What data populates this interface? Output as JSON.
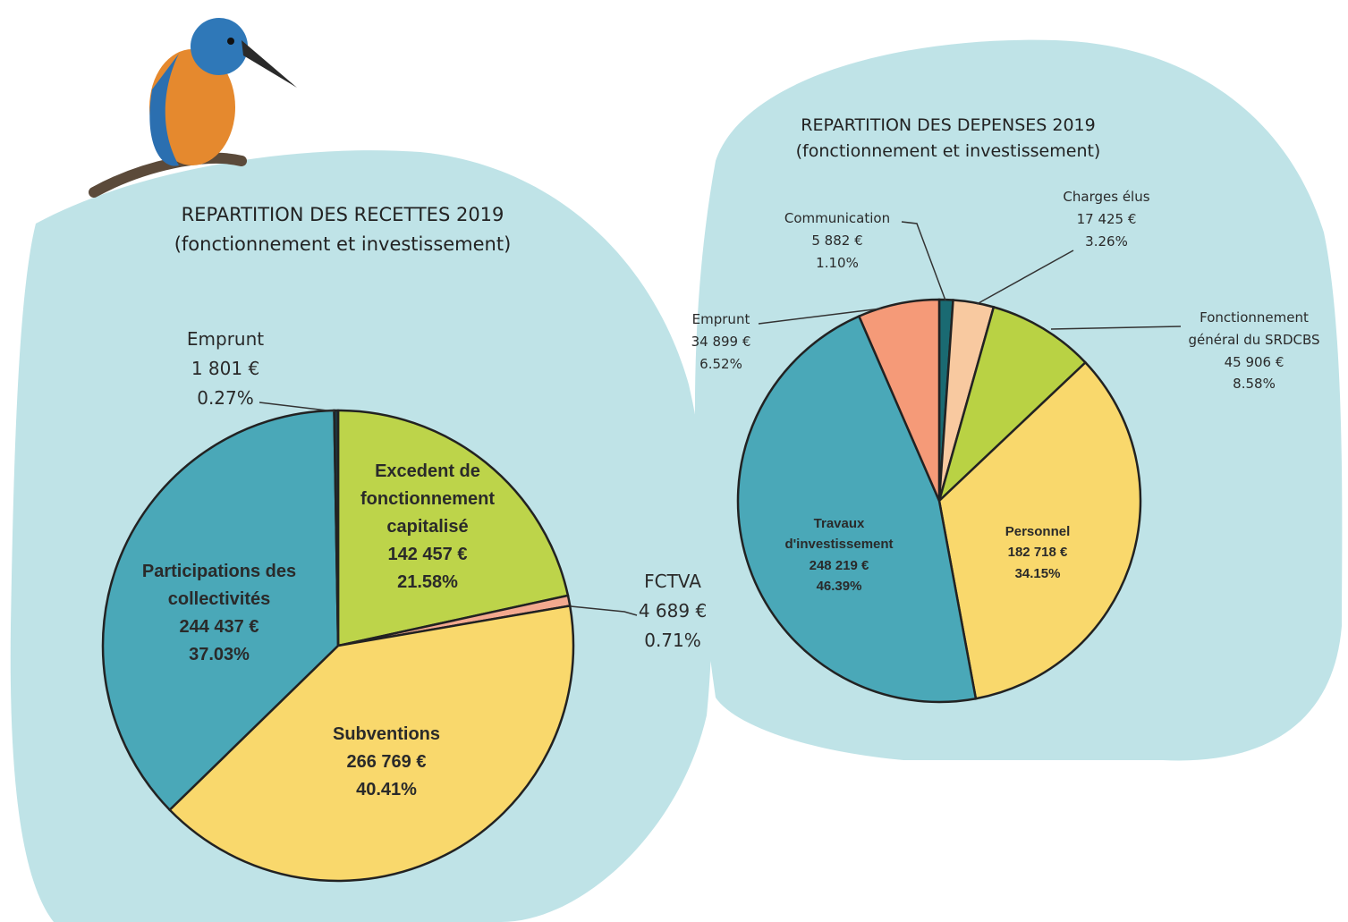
{
  "chart_data": [
    {
      "type": "pie",
      "title": "REPARTITION DES RECETTES 2019",
      "subtitle": "(fonctionnement et investissement)",
      "categories": [
        "Excedent de fonctionnement capitalisé",
        "FCTVA",
        "Subventions",
        "Participations des collectivités",
        "Emprunt"
      ],
      "values": [
        21.58,
        0.71,
        40.41,
        37.03,
        0.27
      ],
      "value_labels": [
        "21.58%",
        "0.71%",
        "40.41%",
        "37.03%",
        "0.27%"
      ],
      "amounts": [
        142457,
        4689,
        266769,
        244437,
        1801
      ],
      "amount_labels": [
        "142 457 €",
        "4 689 €",
        "266 769 €",
        "244 437 €",
        "1 801 €"
      ],
      "colors": [
        "#bdd44a",
        "#f3a98f",
        "#f9d86c",
        "#4aa8b8",
        "#1d3a46"
      ]
    },
    {
      "type": "pie",
      "title": "REPARTITION DES DEPENSES 2019",
      "subtitle": "(fonctionnement et investissement)",
      "categories": [
        "Communication",
        "Charges élus",
        "Fonctionnement général du SRDCBS",
        "Personnel",
        "Travaux d'investissement",
        "Emprunt"
      ],
      "values": [
        1.1,
        3.26,
        8.58,
        34.15,
        46.39,
        6.52
      ],
      "value_labels": [
        "1.10%",
        "3.26%",
        "8.58%",
        "34.15%",
        "46.39%",
        "6.52%"
      ],
      "amounts": [
        5882,
        17425,
        45906,
        182718,
        248219,
        34899
      ],
      "amount_labels": [
        "5 882 €",
        "17 425 €",
        "45 906 €",
        "182 718 €",
        "248 219 €",
        "34 899 €"
      ],
      "colors": [
        "#1a6a72",
        "#f8c9a0",
        "#b9d244",
        "#f9d86c",
        "#4aa8b8",
        "#f59a78"
      ]
    }
  ]
}
